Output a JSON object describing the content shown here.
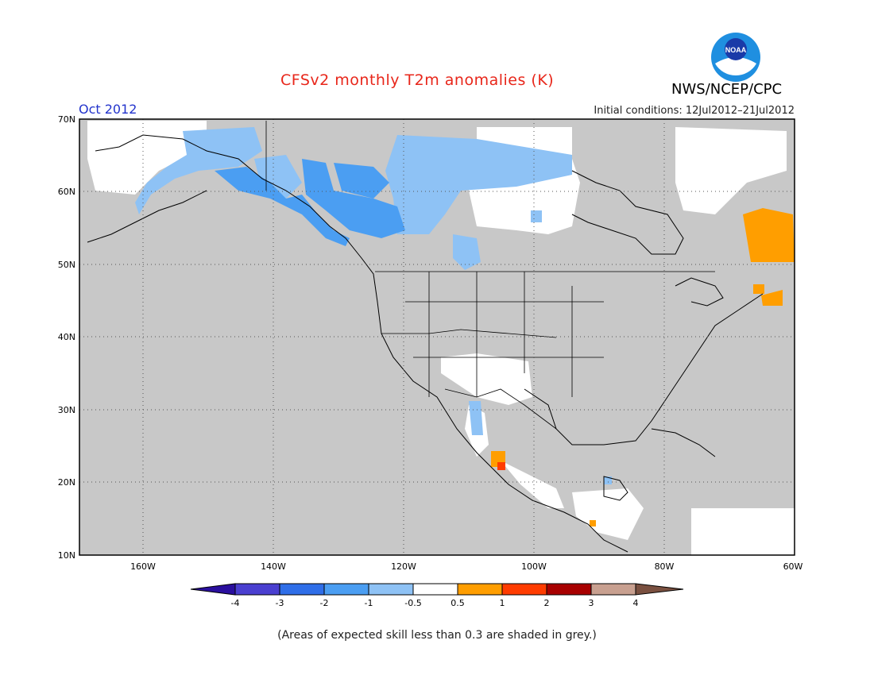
{
  "header": {
    "title": "CFSv2 monthly T2m anomalies (K)",
    "org": "NWS/NCEP/CPC",
    "period": "Oct 2012",
    "initial_conditions": "Initial conditions: 12Jul2012–21Jul2012"
  },
  "logo": {
    "text": "NOAA",
    "icon": "noaa-logo"
  },
  "map": {
    "lat_labels": [
      "70N",
      "60N",
      "50N",
      "40N",
      "30N",
      "20N",
      "10N"
    ],
    "lon_labels": [
      "160W",
      "140W",
      "120W",
      "100W",
      "80W",
      "60W"
    ],
    "background_color": "#c8c8c8",
    "grid": true
  },
  "colorbar": {
    "ticks": [
      "-4",
      "-3",
      "-2",
      "-1",
      "-0.5",
      "0.5",
      "1",
      "2",
      "3",
      "4"
    ],
    "colors": [
      "#2a0f9e",
      "#4a3fd0",
      "#2f6ee8",
      "#4b9ef2",
      "#8ec2f5",
      "#ffffff",
      "#ff9e00",
      "#ff3c00",
      "#a80000",
      "#c8a090",
      "#7a5040"
    ]
  },
  "footnote": "(Areas of expected skill less than 0.3 are shaded in grey.)"
}
